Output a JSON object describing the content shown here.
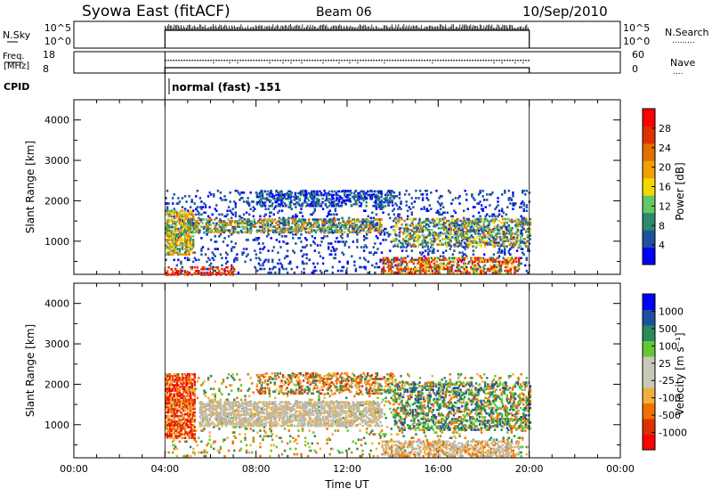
{
  "header": {
    "title": "Syowa East (fitACF)",
    "beam": "Beam 06",
    "date": "10/Sep/2010"
  },
  "status_panels": {
    "nsky_label": "N.Sky",
    "nsearch_label": "N.Search",
    "freq_label_line1": "Freq.",
    "freq_label_line2": "[MHz]",
    "nave_label": "Nave",
    "cpid_label": "CPID",
    "nsky_ticks": [
      "10^5",
      "10^0"
    ],
    "nsearch_ticks": [
      "10^5",
      "10^0"
    ],
    "freq_ticks": [
      "18",
      "8"
    ],
    "nave_ticks": [
      "60",
      "0"
    ],
    "cpid_text": "normal (fast) -151"
  },
  "colors": {
    "power_scale": [
      "#0000ff",
      "#1e50a0",
      "#2a8a6a",
      "#64c864",
      "#f0d800",
      "#f0a000",
      "#e07000",
      "#e03000",
      "#ff0000"
    ],
    "velocity_scale": [
      "#ff0000",
      "#e03000",
      "#f07000",
      "#f0b040",
      "#c8c8b8",
      "#c8c8b8",
      "#64c832",
      "#2a8a5a",
      "#1e50a0",
      "#0000ff"
    ],
    "ground_scatter": "#b9b9b0"
  },
  "chart_data": [
    {
      "type": "heatmap",
      "name": "power-panel",
      "ylabel": "Slant Range [km]",
      "x_range_hours": [
        0,
        24
      ],
      "ylim": [
        180,
        4500
      ],
      "y_ticks": [
        "4000",
        "3000",
        "2000",
        "1000"
      ],
      "y_tick_values": [
        4000,
        3000,
        2000,
        1000
      ],
      "colorbar": {
        "label": "Power [dB]",
        "ticks": [
          "28",
          "24",
          "20",
          "16",
          "12",
          "8",
          "4"
        ],
        "range": [
          0,
          32
        ]
      },
      "data_start_hour": 4,
      "data_end_hour": 20
    },
    {
      "type": "heatmap",
      "name": "velocity-panel",
      "ylabel": "Slant Range [km]",
      "x_range_hours": [
        0,
        24
      ],
      "ylim": [
        180,
        4500
      ],
      "y_ticks": [
        "4000",
        "3000",
        "2000",
        "1000"
      ],
      "y_tick_values": [
        4000,
        3000,
        2000,
        1000
      ],
      "colorbar": {
        "label": "Velocity [m s⁻¹]",
        "ticks": [
          "1000",
          "500",
          "100",
          "25",
          "-25",
          "-100",
          "-500",
          "-1000"
        ]
      },
      "data_start_hour": 4,
      "data_end_hour": 20
    }
  ],
  "x_axis": {
    "label": "Time UT",
    "ticks": [
      "00:00",
      "04:00",
      "08:00",
      "12:00",
      "16:00",
      "20:00",
      "00:00"
    ],
    "tick_hours": [
      0,
      4,
      8,
      12,
      16,
      20,
      24
    ]
  }
}
